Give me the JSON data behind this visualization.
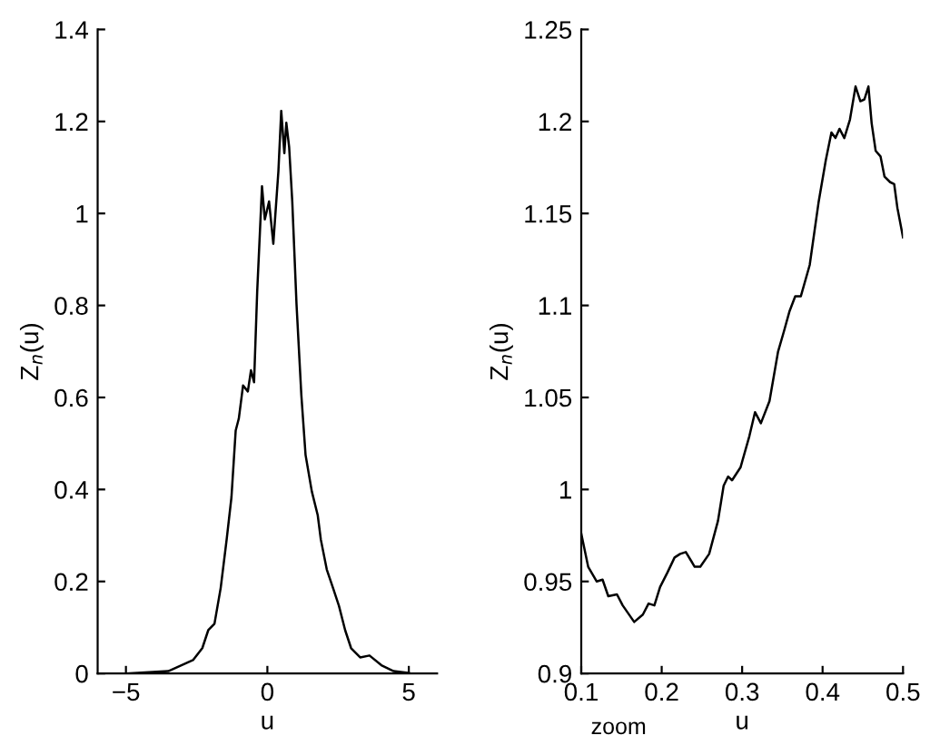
{
  "chart_data": [
    {
      "type": "line",
      "xlabel": "u",
      "ylabel": "Z$_{n}$(u)",
      "x": [
        -5,
        -3.5,
        -2.63,
        -2.3,
        -2.09,
        -1.87,
        -1.65,
        -1.44,
        -1.27,
        -1.12,
        -1.01,
        -0.86,
        -0.69,
        -0.58,
        -0.47,
        -0.36,
        -0.19,
        -0.09,
        0.06,
        0.21,
        0.39,
        0.49,
        0.6,
        0.67,
        0.77,
        0.88,
        1.03,
        1.2,
        1.35,
        1.57,
        1.78,
        1.89,
        2.1,
        2.32,
        2.53,
        2.75,
        2.96,
        3.28,
        3.61,
        4.03,
        4.46,
        5.0
      ],
      "series": [
        {
          "color": "#000000",
          "values": [
            0,
            0.005,
            0.029,
            0.055,
            0.094,
            0.108,
            0.186,
            0.291,
            0.383,
            0.528,
            0.554,
            0.626,
            0.613,
            0.659,
            0.633,
            0.83,
            1.059,
            0.987,
            1.026,
            0.934,
            1.092,
            1.223,
            1.131,
            1.197,
            1.144,
            1.026,
            0.803,
            0.606,
            0.475,
            0.396,
            0.344,
            0.291,
            0.226,
            0.186,
            0.147,
            0.094,
            0.055,
            0.035,
            0.039,
            0.018,
            0.005,
            0.001
          ]
        }
      ],
      "xlim": [
        -6,
        6
      ],
      "xticks": [
        {
          "value": -5,
          "label": "−5"
        },
        0,
        5
      ],
      "ylim": [
        0,
        1.4
      ],
      "yticks": [
        0,
        0.2,
        0.4,
        0.6,
        0.8,
        1,
        1.2,
        1.4
      ],
      "grid": false,
      "legend": false
    },
    {
      "type": "line",
      "xlabel": "u",
      "ylabel": "Z$_{n}$(u)",
      "annotations": [
        "zoom"
      ],
      "x": [
        0.1,
        0.1086,
        0.1193,
        0.1265,
        0.1336,
        0.1444,
        0.1515,
        0.1658,
        0.1766,
        0.1837,
        0.1909,
        0.198,
        0.2073,
        0.216,
        0.223,
        0.23,
        0.241,
        0.248,
        0.259,
        0.27,
        0.277,
        0.2825,
        0.2875,
        0.298,
        0.309,
        0.316,
        0.3233,
        0.334,
        0.3447,
        0.352,
        0.359,
        0.366,
        0.373,
        0.384,
        0.395,
        0.404,
        0.411,
        0.416,
        0.421,
        0.427,
        0.434,
        0.441,
        0.447,
        0.452,
        0.457,
        0.461,
        0.466,
        0.472,
        0.477,
        0.484,
        0.489,
        0.493,
        0.5
      ],
      "series": [
        {
          "color": "#000000",
          "values": [
            0.976,
            0.958,
            0.95,
            0.951,
            0.942,
            0.943,
            0.937,
            0.928,
            0.932,
            0.938,
            0.937,
            0.947,
            0.955,
            0.963,
            0.965,
            0.966,
            0.958,
            0.958,
            0.965,
            0.983,
            1.002,
            1.007,
            1.005,
            1.012,
            1.029,
            1.042,
            1.036,
            1.048,
            1.075,
            1.086,
            1.097,
            1.105,
            1.105,
            1.122,
            1.156,
            1.179,
            1.194,
            1.191,
            1.196,
            1.191,
            1.201,
            1.219,
            1.211,
            1.212,
            1.219,
            1.199,
            1.184,
            1.181,
            1.17,
            1.167,
            1.166,
            1.153,
            1.137
          ]
        }
      ],
      "xlim": [
        0.1,
        0.5
      ],
      "xticks": [
        0.1,
        0.2,
        0.3,
        0.4,
        0.5
      ],
      "ylim": [
        0.9,
        1.25
      ],
      "yticks": [
        0.9,
        0.95,
        1,
        1.05,
        1.1,
        1.15,
        1.2,
        1.25
      ],
      "grid": false,
      "legend": false
    }
  ]
}
